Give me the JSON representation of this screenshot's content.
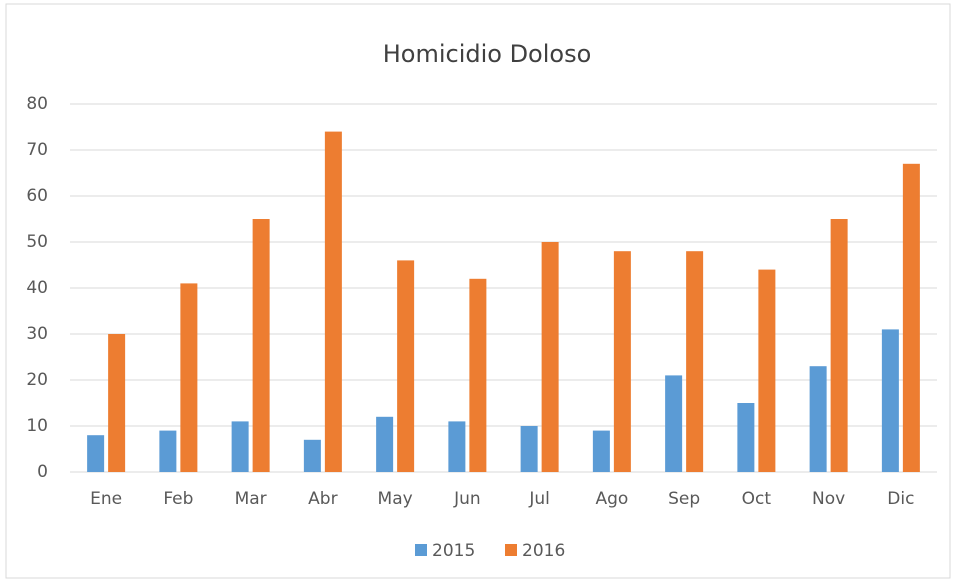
{
  "chart_data": {
    "type": "bar",
    "title": "Homicidio Doloso",
    "categories": [
      "Ene",
      "Feb",
      "Mar",
      "Abr",
      "May",
      "Jun",
      "Jul",
      "Ago",
      "Sep",
      "Oct",
      "Nov",
      "Dic"
    ],
    "series": [
      {
        "name": "2015",
        "color": "#5b9bd5",
        "values": [
          8,
          9,
          11,
          7,
          12,
          11,
          10,
          9,
          21,
          15,
          23,
          31
        ]
      },
      {
        "name": "2016",
        "color": "#ed7d31",
        "values": [
          30,
          41,
          55,
          74,
          46,
          42,
          50,
          48,
          48,
          44,
          55,
          67
        ]
      }
    ],
    "ylim": [
      0,
      80
    ],
    "yticks": [
      0,
      10,
      20,
      30,
      40,
      50,
      60,
      70,
      80
    ],
    "grid": true,
    "legend": "bottom"
  }
}
